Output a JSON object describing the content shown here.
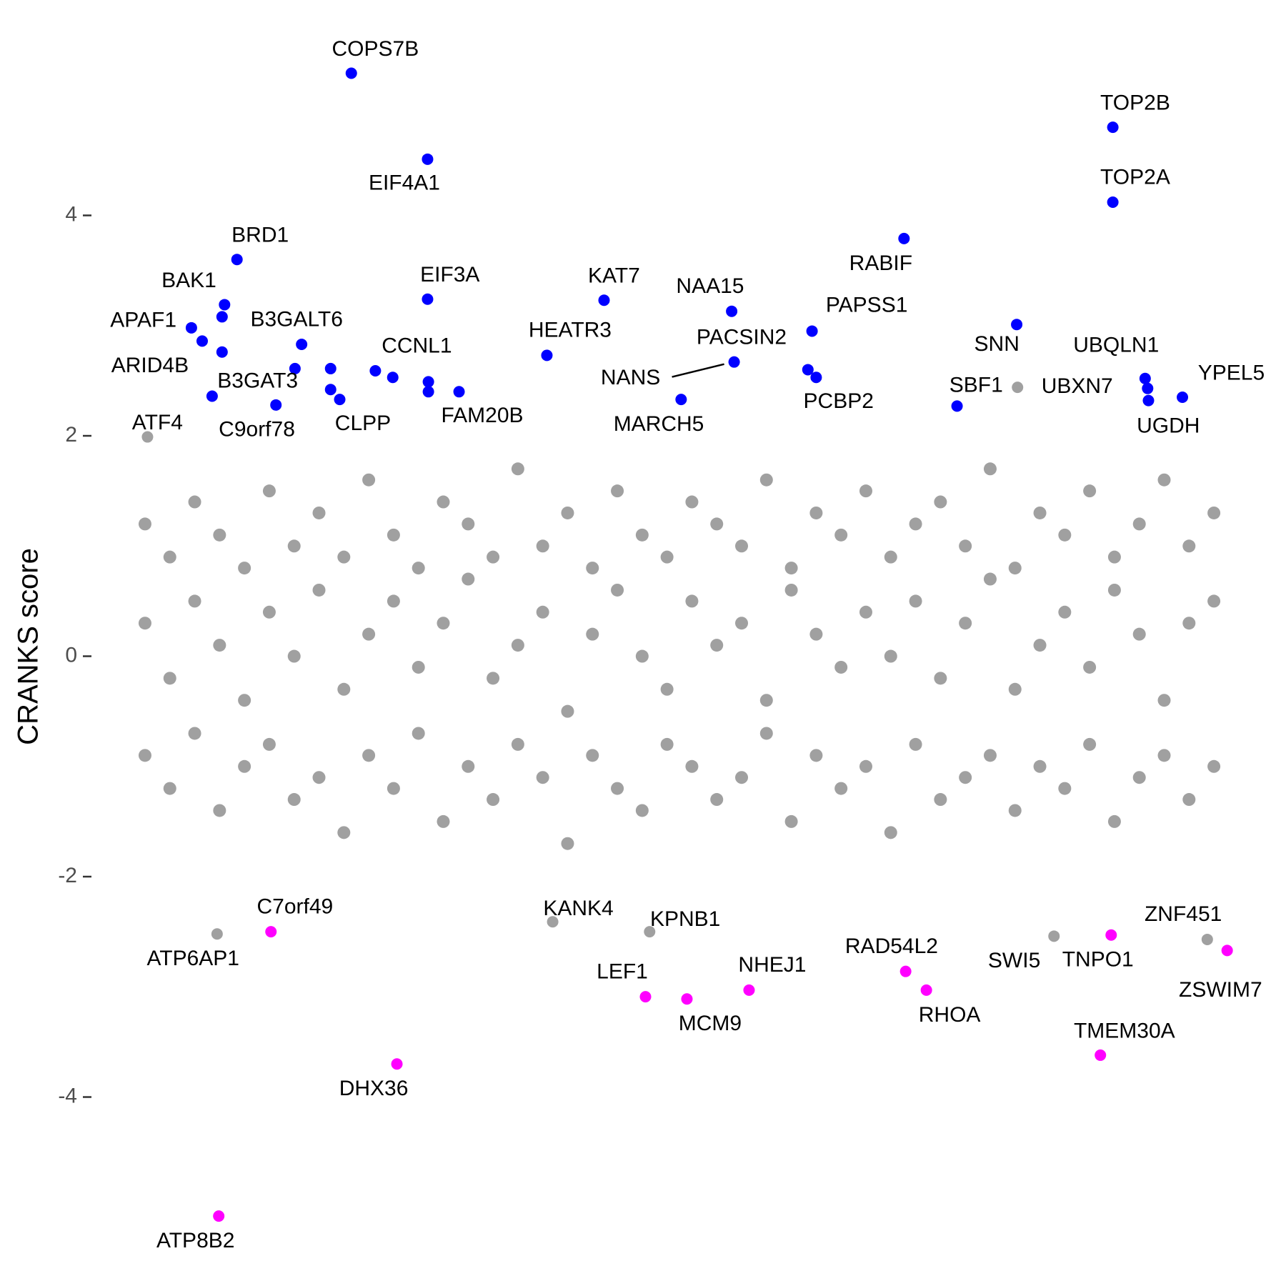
{
  "chart_data": {
    "type": "scatter",
    "ylabel": "CRANKS score",
    "xlim": [
      0,
      1400
    ],
    "ylim": [
      -5.5,
      5.6
    ],
    "yticks": [
      -4,
      -2,
      0,
      2,
      4
    ],
    "series": [
      {
        "color": "#a0a0a0",
        "x": [
          45,
          75,
          105,
          135,
          165,
          195,
          225,
          255,
          285,
          315,
          345,
          375,
          405,
          435,
          465,
          495,
          525,
          555,
          585,
          615,
          645,
          675,
          705,
          735,
          765,
          795,
          825,
          855,
          885,
          915,
          945,
          975,
          1005,
          1035,
          1065,
          1095,
          1125,
          1155,
          1185,
          1215,
          1245,
          1275,
          1305,
          1335,
          45,
          75,
          105,
          135,
          165,
          195,
          225,
          255,
          285,
          315,
          345,
          375,
          405,
          435,
          465,
          495,
          525,
          555,
          585,
          615,
          645,
          675,
          705,
          735,
          765,
          795,
          825,
          855,
          885,
          915,
          945,
          975,
          1005,
          1035,
          1065,
          1095,
          1125,
          1155,
          1185,
          1215,
          1245,
          1275,
          1305,
          1335,
          45,
          75,
          105,
          135,
          165,
          195,
          225,
          255,
          285,
          315,
          345,
          375,
          405,
          435,
          465,
          495,
          525,
          555,
          585,
          615,
          645,
          675,
          705,
          735,
          765,
          795,
          825,
          855,
          885,
          915,
          945,
          975,
          1005,
          1035,
          1065,
          1095,
          1125,
          1155,
          1185,
          1215,
          1245,
          1275,
          1305,
          1335
        ],
        "values": [
          1.2,
          0.9,
          1.4,
          1.1,
          0.8,
          1.5,
          1.0,
          1.3,
          0.9,
          1.6,
          1.1,
          0.8,
          1.4,
          1.2,
          0.9,
          1.7,
          1.0,
          1.3,
          0.8,
          1.5,
          1.1,
          0.9,
          1.4,
          1.2,
          1.0,
          1.6,
          0.8,
          1.3,
          1.1,
          1.5,
          0.9,
          1.2,
          1.4,
          1.0,
          1.7,
          0.8,
          1.3,
          1.1,
          1.5,
          0.9,
          1.2,
          1.6,
          1.0,
          1.3,
          0.3,
          -0.2,
          0.5,
          0.1,
          -0.4,
          0.4,
          0,
          0.6,
          -0.3,
          0.2,
          0.5,
          -0.1,
          0.3,
          0.7,
          -0.2,
          0.1,
          0.4,
          -0.5,
          0.2,
          0.6,
          0,
          -0.3,
          0.5,
          0.1,
          0.3,
          -0.4,
          0.6,
          0.2,
          -0.1,
          0.4,
          0,
          0.5,
          -0.2,
          0.3,
          0.7,
          -0.3,
          0.1,
          0.4,
          -0.1,
          0.6,
          0.2,
          -0.4,
          0.3,
          0.5,
          -0.9,
          -1.2,
          -0.7,
          -1.4,
          -1.0,
          -0.8,
          -1.3,
          -1.1,
          -1.6,
          -0.9,
          -1.2,
          -0.7,
          -1.5,
          -1.0,
          -1.3,
          -0.8,
          -1.1,
          -1.7,
          -0.9,
          -1.2,
          -1.4,
          -0.8,
          -1.0,
          -1.3,
          -1.1,
          -0.7,
          -1.5,
          -0.9,
          -1.2,
          -1.0,
          -1.6,
          -0.8,
          -1.3,
          -1.1,
          -0.9,
          -1.4,
          -1.0,
          -1.2,
          -0.8,
          -1.5,
          -1.1,
          -0.9,
          -1.3,
          -1.0
        ]
      },
      {
        "color": "#a0a0a0",
        "labels": [
          "ATF4",
          "UBXN7",
          "ATP6AP1",
          "KANK4",
          "KPNB1",
          "SWI5",
          "ZNF451"
        ],
        "x": [
          48,
          1098,
          132,
          537,
          654,
          1142,
          1327
        ],
        "values": [
          1.99,
          2.44,
          -2.52,
          -2.41,
          -2.5,
          -2.54,
          -2.57
        ]
      },
      {
        "color": "#0000ff",
        "labels": [
          "COPS7B",
          "EIF4A1",
          "TOP2B",
          "TOP2A",
          "RABIF",
          "BRD1",
          "BAK1",
          null,
          "EIF3A",
          "KAT7",
          "NAA15",
          "APAF1",
          "SNN",
          "PAPSS1",
          "ARID4B",
          "B3GALT6",
          null,
          "HEATR3",
          "NANS",
          "CCNL1",
          null,
          null,
          null,
          null,
          null,
          null,
          "CLPP",
          "FAM20B",
          "PACSIN2",
          "PCBP2",
          "MARCH5",
          "UBQLN1",
          null,
          "UGDH",
          "YPEL5",
          "SBF1",
          "B3GAT3",
          "C9orf78"
        ],
        "x": [
          294,
          386,
          1213,
          1213,
          961,
          156,
          141,
          138,
          386,
          599,
          753,
          101,
          1097,
          850,
          114,
          234,
          138,
          530,
          756,
          323,
          226,
          269,
          344,
          387,
          387,
          269,
          280,
          424,
          845,
          855,
          692,
          1252,
          1255,
          1256,
          1297,
          1025,
          126,
          203
        ],
        "values": [
          5.29,
          4.51,
          4.8,
          4.12,
          3.79,
          3.6,
          3.19,
          3.08,
          3.24,
          3.23,
          3.13,
          2.98,
          3.01,
          2.95,
          2.86,
          2.83,
          2.76,
          2.73,
          2.67,
          2.59,
          2.61,
          2.61,
          2.53,
          2.49,
          2.4,
          2.42,
          2.33,
          2.4,
          2.6,
          2.53,
          2.33,
          2.52,
          2.43,
          2.32,
          2.35,
          2.27,
          2.36,
          2.28
        ]
      },
      {
        "color": "#ff00ff",
        "labels": [
          "C7orf49",
          "DHX36",
          "ATP8B2",
          "LEF1",
          "MCM9",
          "NHEJ1",
          "RAD54L2",
          "RHOA",
          "TNPO1",
          "TMEM30A",
          "ZSWIM7"
        ],
        "x": [
          197,
          349,
          134,
          649,
          699,
          774,
          963,
          988,
          1211,
          1198,
          1351
        ],
        "values": [
          -2.5,
          -3.7,
          -5.08,
          -3.09,
          -3.11,
          -3.03,
          -2.86,
          -3.03,
          -2.53,
          -3.62,
          -2.67
        ]
      }
    ]
  }
}
